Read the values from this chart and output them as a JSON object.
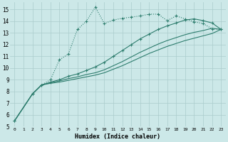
{
  "xlabel": "Humidex (Indice chaleur)",
  "background_color": "#cce8e8",
  "line_color": "#2e7d6e",
  "grid_color": "#aacccc",
  "xlim": [
    -0.5,
    23.5
  ],
  "ylim": [
    5,
    15.6
  ],
  "xticks": [
    0,
    1,
    2,
    3,
    4,
    5,
    6,
    7,
    8,
    9,
    10,
    11,
    12,
    13,
    14,
    15,
    16,
    17,
    18,
    19,
    20,
    21,
    22,
    23
  ],
  "yticks": [
    5,
    6,
    7,
    8,
    9,
    10,
    11,
    12,
    13,
    14,
    15
  ],
  "line_dotted_x": [
    0,
    2,
    3,
    4,
    5,
    6,
    7,
    8,
    9,
    10,
    11,
    12,
    13,
    14,
    15,
    16,
    17,
    18,
    19,
    20,
    21,
    22,
    23
  ],
  "line_dotted_y": [
    5.5,
    7.8,
    8.55,
    9.0,
    10.7,
    11.2,
    13.3,
    14.0,
    15.2,
    13.8,
    14.1,
    14.25,
    14.35,
    14.45,
    14.6,
    14.6,
    14.05,
    14.45,
    14.2,
    13.95,
    13.8,
    13.35,
    13.3
  ],
  "line_solid_marker_x": [
    0,
    2,
    3,
    4,
    5,
    6,
    7,
    8,
    9,
    10,
    11,
    12,
    13,
    14,
    15,
    16,
    17,
    18,
    19,
    20,
    21,
    22,
    23
  ],
  "line_solid_marker_y": [
    5.5,
    7.8,
    8.55,
    8.8,
    9.0,
    9.3,
    9.5,
    9.8,
    10.1,
    10.5,
    11.0,
    11.5,
    12.0,
    12.5,
    12.9,
    13.3,
    13.6,
    13.85,
    14.1,
    14.2,
    14.05,
    13.85,
    13.3
  ],
  "line_solid1_x": [
    0,
    2,
    3,
    4,
    5,
    6,
    7,
    8,
    9,
    10,
    11,
    12,
    13,
    14,
    15,
    16,
    17,
    18,
    19,
    20,
    21,
    22,
    23
  ],
  "line_solid1_y": [
    5.5,
    7.8,
    8.55,
    8.75,
    8.9,
    9.1,
    9.25,
    9.45,
    9.6,
    9.85,
    10.2,
    10.55,
    10.95,
    11.35,
    11.7,
    12.05,
    12.35,
    12.6,
    12.85,
    13.05,
    13.2,
    13.4,
    13.3
  ],
  "line_solid2_x": [
    0,
    2,
    3,
    4,
    5,
    6,
    7,
    8,
    9,
    10,
    11,
    12,
    13,
    14,
    15,
    16,
    17,
    18,
    19,
    20,
    21,
    22,
    23
  ],
  "line_solid2_y": [
    5.5,
    7.8,
    8.55,
    8.7,
    8.8,
    8.95,
    9.1,
    9.25,
    9.4,
    9.6,
    9.9,
    10.2,
    10.55,
    10.9,
    11.25,
    11.55,
    11.85,
    12.1,
    12.35,
    12.55,
    12.75,
    12.95,
    13.3
  ]
}
